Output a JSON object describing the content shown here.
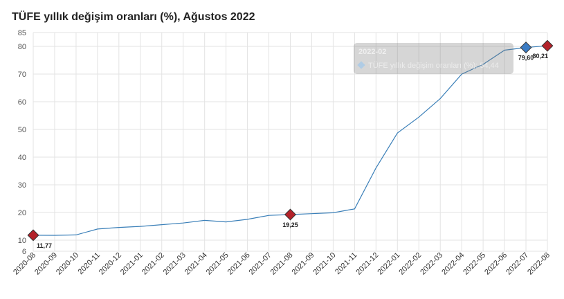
{
  "chart_data": {
    "type": "line",
    "title": "TÜFE yıllık değişim oranları (%), Ağustos 2022",
    "xlabel": "",
    "ylabel": "",
    "ylim": [
      6,
      85
    ],
    "y_ticks": [
      6,
      10,
      20,
      30,
      40,
      50,
      60,
      70,
      80,
      85
    ],
    "grid": true,
    "categories": [
      "2020-08",
      "2020-09",
      "2020-10",
      "2020-11",
      "2020-12",
      "2021-01",
      "2021-02",
      "2021-03",
      "2021-04",
      "2021-05",
      "2021-06",
      "2021-07",
      "2021-08",
      "2021-09",
      "2021-10",
      "2021-11",
      "2021-12",
      "2022-01",
      "2022-02",
      "2022-03",
      "2022-04",
      "2022-05",
      "2022-06",
      "2022-07",
      "2022-08"
    ],
    "series": [
      {
        "values": [
          11.77,
          11.75,
          11.89,
          14.03,
          14.6,
          14.97,
          15.61,
          16.19,
          17.14,
          16.59,
          17.53,
          18.95,
          19.25,
          19.58,
          19.89,
          21.31,
          36.08,
          48.69,
          54.44,
          61.14,
          69.97,
          73.5,
          78.62,
          79.6,
          80.21
        ],
        "color": "#3a7fb8"
      }
    ],
    "highlighted_points": [
      {
        "index": 0,
        "label": "11,77",
        "color": "#b3222a"
      },
      {
        "index": 12,
        "label": "19,25",
        "color": "#b3222a"
      },
      {
        "index": 23,
        "label": "79,60",
        "color": "#3b7cc4"
      },
      {
        "index": 24,
        "label": "80,21",
        "color": "#b3222a"
      }
    ],
    "tooltip": {
      "category": "2022-02",
      "series_label": "TÜFE yıllık değişim oranları",
      "value": "(%): 54,44"
    }
  }
}
